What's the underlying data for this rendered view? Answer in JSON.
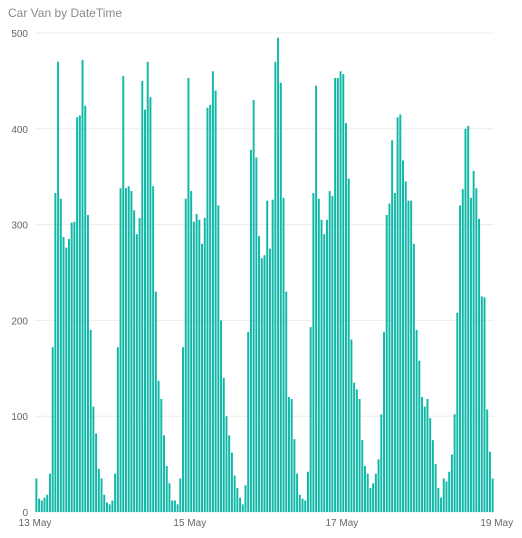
{
  "chart_data": {
    "type": "bar",
    "title": "Car Van by DateTime",
    "xlabel": "",
    "ylabel": "",
    "ylim": [
      0,
      500
    ],
    "y_ticks": [
      0,
      100,
      200,
      300,
      400,
      500
    ],
    "x_ticks": [
      "13 May",
      "15 May",
      "17 May",
      "19 May"
    ],
    "grid": true,
    "bar_color": "#11B8A8",
    "series": [
      {
        "values": [
          35,
          14,
          12,
          15,
          18,
          40,
          172,
          333,
          470,
          327,
          287,
          276,
          285,
          302,
          303,
          412,
          414,
          472,
          424,
          310,
          190,
          110,
          82,
          45,
          35,
          18,
          10,
          8,
          12,
          40,
          172,
          338,
          455,
          338,
          340,
          335,
          315,
          290,
          307,
          450,
          420,
          470,
          433,
          340,
          230,
          137,
          118,
          80,
          48,
          30,
          12,
          12,
          8,
          35,
          172,
          327,
          453,
          335,
          303,
          311,
          305,
          280,
          307,
          422,
          425,
          460,
          440,
          320,
          200,
          140,
          100,
          80,
          62,
          38,
          25,
          15,
          8,
          28,
          188,
          378,
          430,
          370,
          288,
          265,
          268,
          325,
          275,
          326,
          470,
          495,
          448,
          328,
          230,
          120,
          118,
          76,
          40,
          18,
          14,
          12,
          42,
          193,
          333,
          445,
          327,
          305,
          290,
          305,
          335,
          330,
          453,
          453,
          460,
          457,
          406,
          348,
          180,
          135,
          128,
          118,
          75,
          48,
          40,
          25,
          30,
          40,
          55,
          102,
          188,
          310,
          322,
          388,
          333,
          412,
          415,
          367,
          345,
          325,
          325,
          280,
          190,
          158,
          120,
          110,
          118,
          98,
          75,
          50,
          25,
          15,
          35,
          32,
          42,
          60,
          102,
          208,
          320,
          337,
          400,
          403,
          328,
          356,
          338,
          306,
          225,
          224,
          107,
          63,
          35
        ]
      }
    ]
  }
}
